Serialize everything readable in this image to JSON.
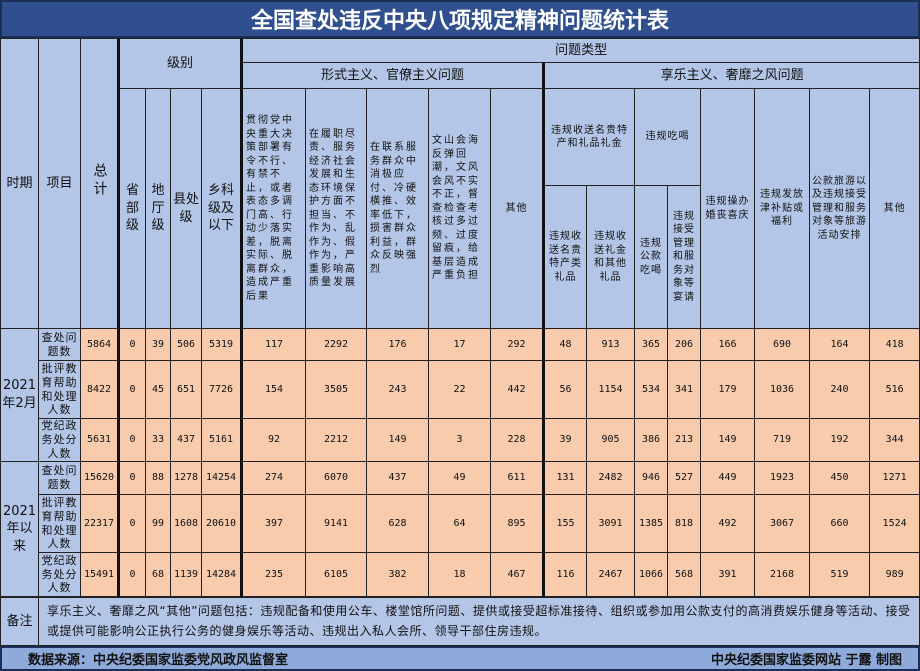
{
  "title": "全国查处违反中央八项规定精神问题统计表",
  "headers": {
    "period": "时期",
    "item": "项目",
    "total": "总计",
    "level": "级别",
    "levels": [
      "省部级",
      "地厅级",
      "县处级",
      "乡科级及以下"
    ],
    "problem_type": "问题类型",
    "formalism": "形式主义、官僚主义问题",
    "hedonism": "享乐主义、奢靡之风问题",
    "formalism_cols": [
      "贯彻党中央重大决策部署有令不行、有禁不止，或者表态多调门高、行动少落实差，脱离实际、脱离群众，造成严重后果",
      "在履职尽责、服务经济社会发展和生态环境保护方面不担当、不作为、乱作为、假作为，严重影响高质量发展",
      "在联系服务群众中消极应付、冷硬横推、效率低下，损害群众利益，群众反映强烈",
      "文山会海反弹回潮，文风会风不实不正，督查检查考核过多过频、过度留痕，给基层造成严重负担",
      "其他"
    ],
    "gifts": "违规收送名贵特产和礼品礼金",
    "gifts_sub": [
      "违规收送名贵特产类礼品",
      "违规收送礼金和其他礼品"
    ],
    "dining": "违规吃喝",
    "dining_sub": [
      "违规公款吃喝",
      "违规接受管理和服务对象等宴请"
    ],
    "weddings": "违规操办婚丧喜庆",
    "subsidies": "违规发放津补贴或福利",
    "travel": "公款旅游以及违规接受管理和服务对象等旅游活动安排",
    "other": "其他"
  },
  "periods": [
    {
      "label": "2021年2月",
      "rows": [
        {
          "item": "查处问题数",
          "values": [
            5864,
            0,
            39,
            506,
            5319,
            117,
            2292,
            176,
            17,
            292,
            48,
            913,
            365,
            206,
            166,
            690,
            164,
            418
          ]
        },
        {
          "item": "批评教育帮助和处理人数",
          "values": [
            8422,
            0,
            45,
            651,
            7726,
            154,
            3505,
            243,
            22,
            442,
            56,
            1154,
            534,
            341,
            179,
            1036,
            240,
            516
          ]
        },
        {
          "item": "党纪政务处分人数",
          "values": [
            5631,
            0,
            33,
            437,
            5161,
            92,
            2212,
            149,
            3,
            228,
            39,
            905,
            386,
            213,
            149,
            719,
            192,
            344
          ]
        }
      ]
    },
    {
      "label": "2021年以来",
      "rows": [
        {
          "item": "查处问题数",
          "values": [
            15620,
            0,
            88,
            1278,
            14254,
            274,
            6070,
            437,
            49,
            611,
            131,
            2482,
            946,
            527,
            449,
            1923,
            450,
            1271
          ]
        },
        {
          "item": "批评教育帮助和处理人数",
          "values": [
            22317,
            0,
            99,
            1608,
            20610,
            397,
            9141,
            628,
            64,
            895,
            155,
            3091,
            1385,
            818,
            492,
            3067,
            660,
            1524
          ]
        },
        {
          "item": "党纪政务处分人数",
          "values": [
            15491,
            0,
            68,
            1139,
            14284,
            235,
            6105,
            382,
            18,
            467,
            116,
            2467,
            1066,
            568,
            391,
            2168,
            519,
            989
          ]
        }
      ]
    }
  ],
  "note_label": "备注",
  "note": "享乐主义、奢靡之风“其他”问题包括：违规配备和使用公车、楼堂馆所问题、提供或接受超标准接待、组织或参加用公款支付的高消费娱乐健身等活动、接受或提供可能影响公正执行公务的健身娱乐等活动、违规出入私人会所、领导干部住房违规。",
  "source": "数据来源：中央纪委国家监委党风政风监督室",
  "credit": "中央纪委国家监委网站 于露 制图"
}
